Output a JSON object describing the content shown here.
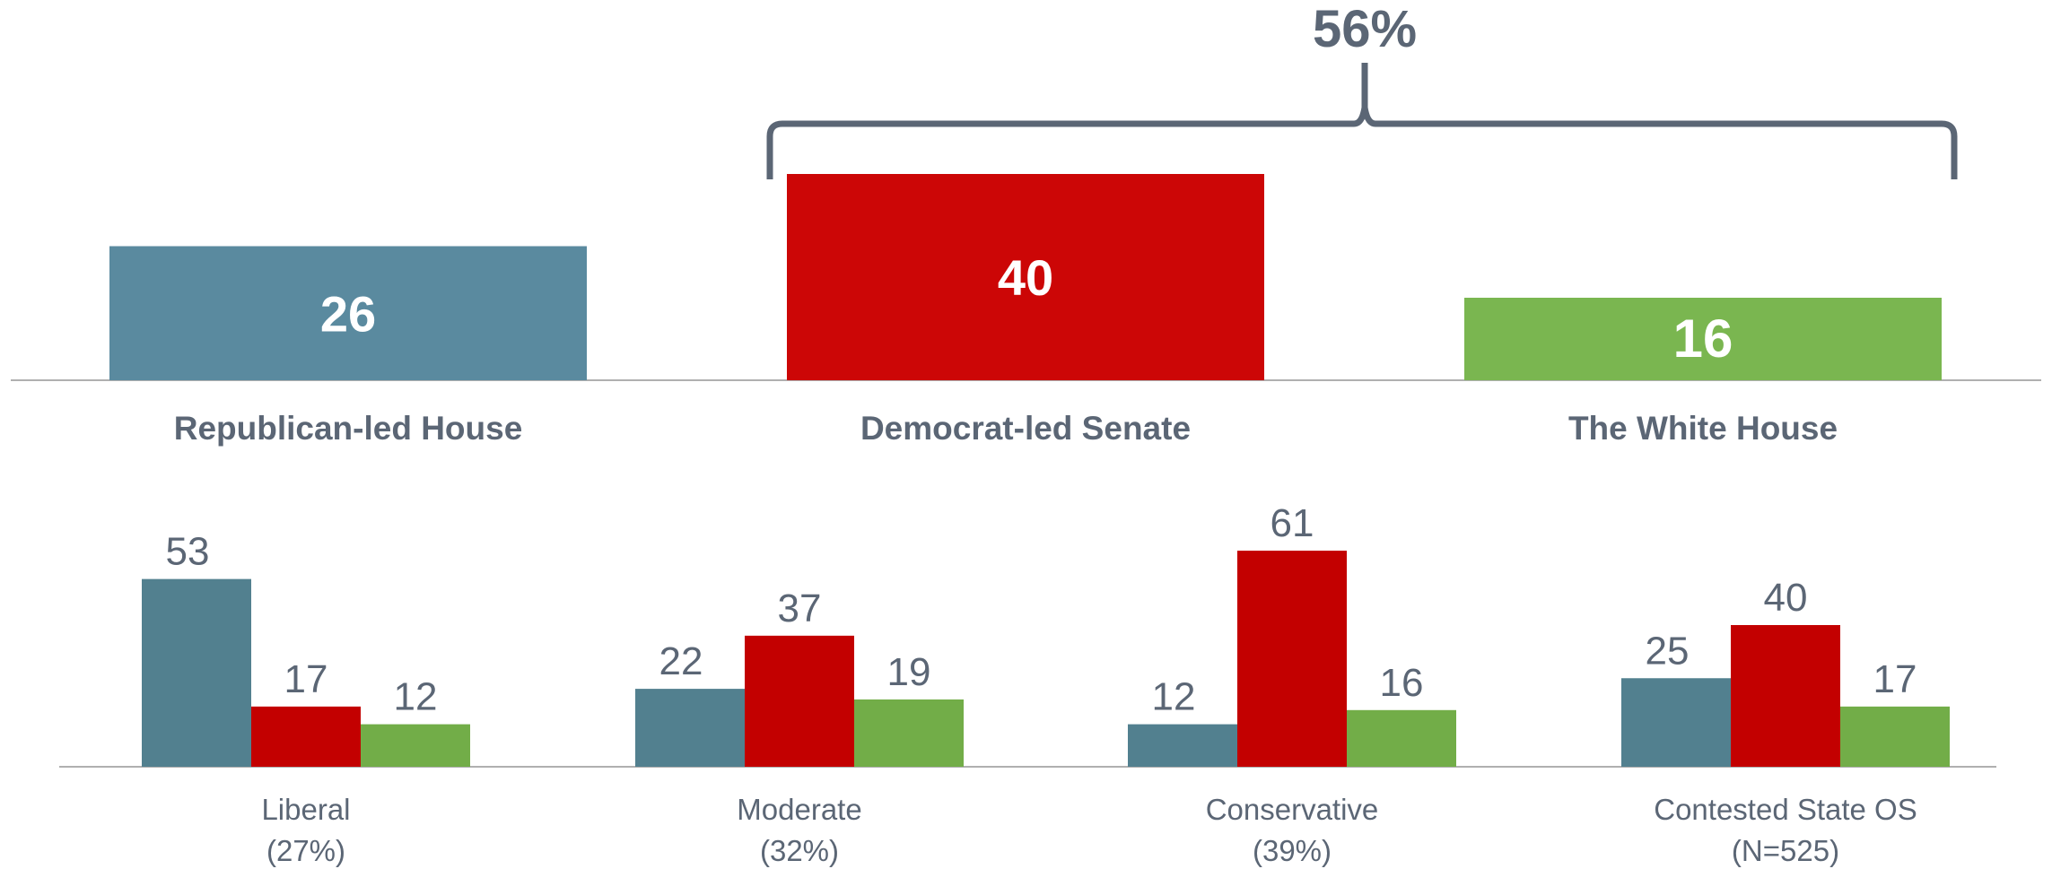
{
  "colors": {
    "house": "#5a8a9f",
    "senate": "#cc0606",
    "white_house": "#7ab650",
    "house_dark": "#52808f",
    "senate_dark": "#c30000",
    "white_house_dark": "#72ad48",
    "text": "#5b6675",
    "bracket": "#5b6675",
    "axis": "#b0b0b0"
  },
  "chart_data": [
    {
      "type": "bar",
      "categories": [
        "Republican-led House",
        "Democrat-led Senate",
        "The White House"
      ],
      "values": [
        26,
        40,
        16
      ],
      "value_labels": [
        "26",
        "40",
        "16"
      ],
      "bracket": {
        "label": "56%",
        "spans": [
          "Democrat-led Senate",
          "The White House"
        ]
      },
      "ylim": [
        0,
        45
      ],
      "grid": false
    },
    {
      "type": "bar",
      "categories": [
        "Liberal",
        "Moderate",
        "Conservative",
        "Contested State OS"
      ],
      "sublabels": [
        "(27%)",
        "(32%)",
        "(39%)",
        "(N=525)"
      ],
      "series": [
        {
          "values": [
            53,
            22,
            12,
            25
          ],
          "value_labels": [
            "53",
            "22",
            "12",
            "25"
          ]
        },
        {
          "values": [
            17,
            37,
            61,
            40
          ],
          "value_labels": [
            "17",
            "37",
            "61",
            "40"
          ]
        },
        {
          "values": [
            12,
            19,
            16,
            17
          ],
          "value_labels": [
            "12",
            "19",
            "16",
            "17"
          ]
        }
      ],
      "ylim": [
        0,
        70
      ],
      "grid": false
    }
  ]
}
